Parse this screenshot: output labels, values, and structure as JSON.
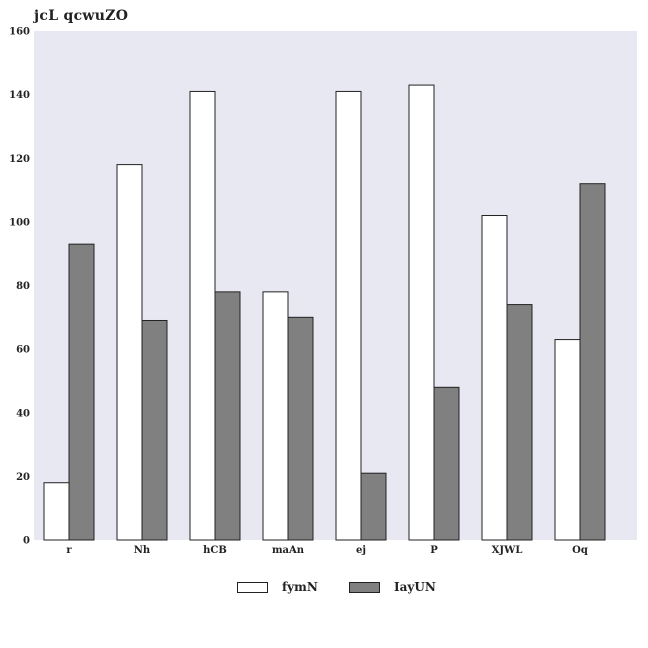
{
  "chart_data": {
    "type": "bar",
    "title": "jcL qcwuZO",
    "xlabel": "",
    "ylabel": "",
    "categories": [
      "r",
      "Nh",
      "hCB",
      "maAn",
      "ej",
      "P",
      "XJWL",
      "Oq"
    ],
    "series": [
      {
        "name": "fymN",
        "color": "#ffffff",
        "values": [
          18,
          118,
          141,
          78,
          141,
          143,
          102,
          63
        ]
      },
      {
        "name": "IayUN",
        "color": "#808080",
        "values": [
          93,
          69,
          78,
          70,
          21,
          48,
          74,
          112
        ]
      }
    ],
    "ylim": [
      0,
      160
    ],
    "yticks": [
      0,
      20,
      40,
      60,
      80,
      100,
      120,
      140,
      160
    ],
    "grid": false,
    "legend": "bottom-center",
    "background_color": "#e8e8f2"
  }
}
